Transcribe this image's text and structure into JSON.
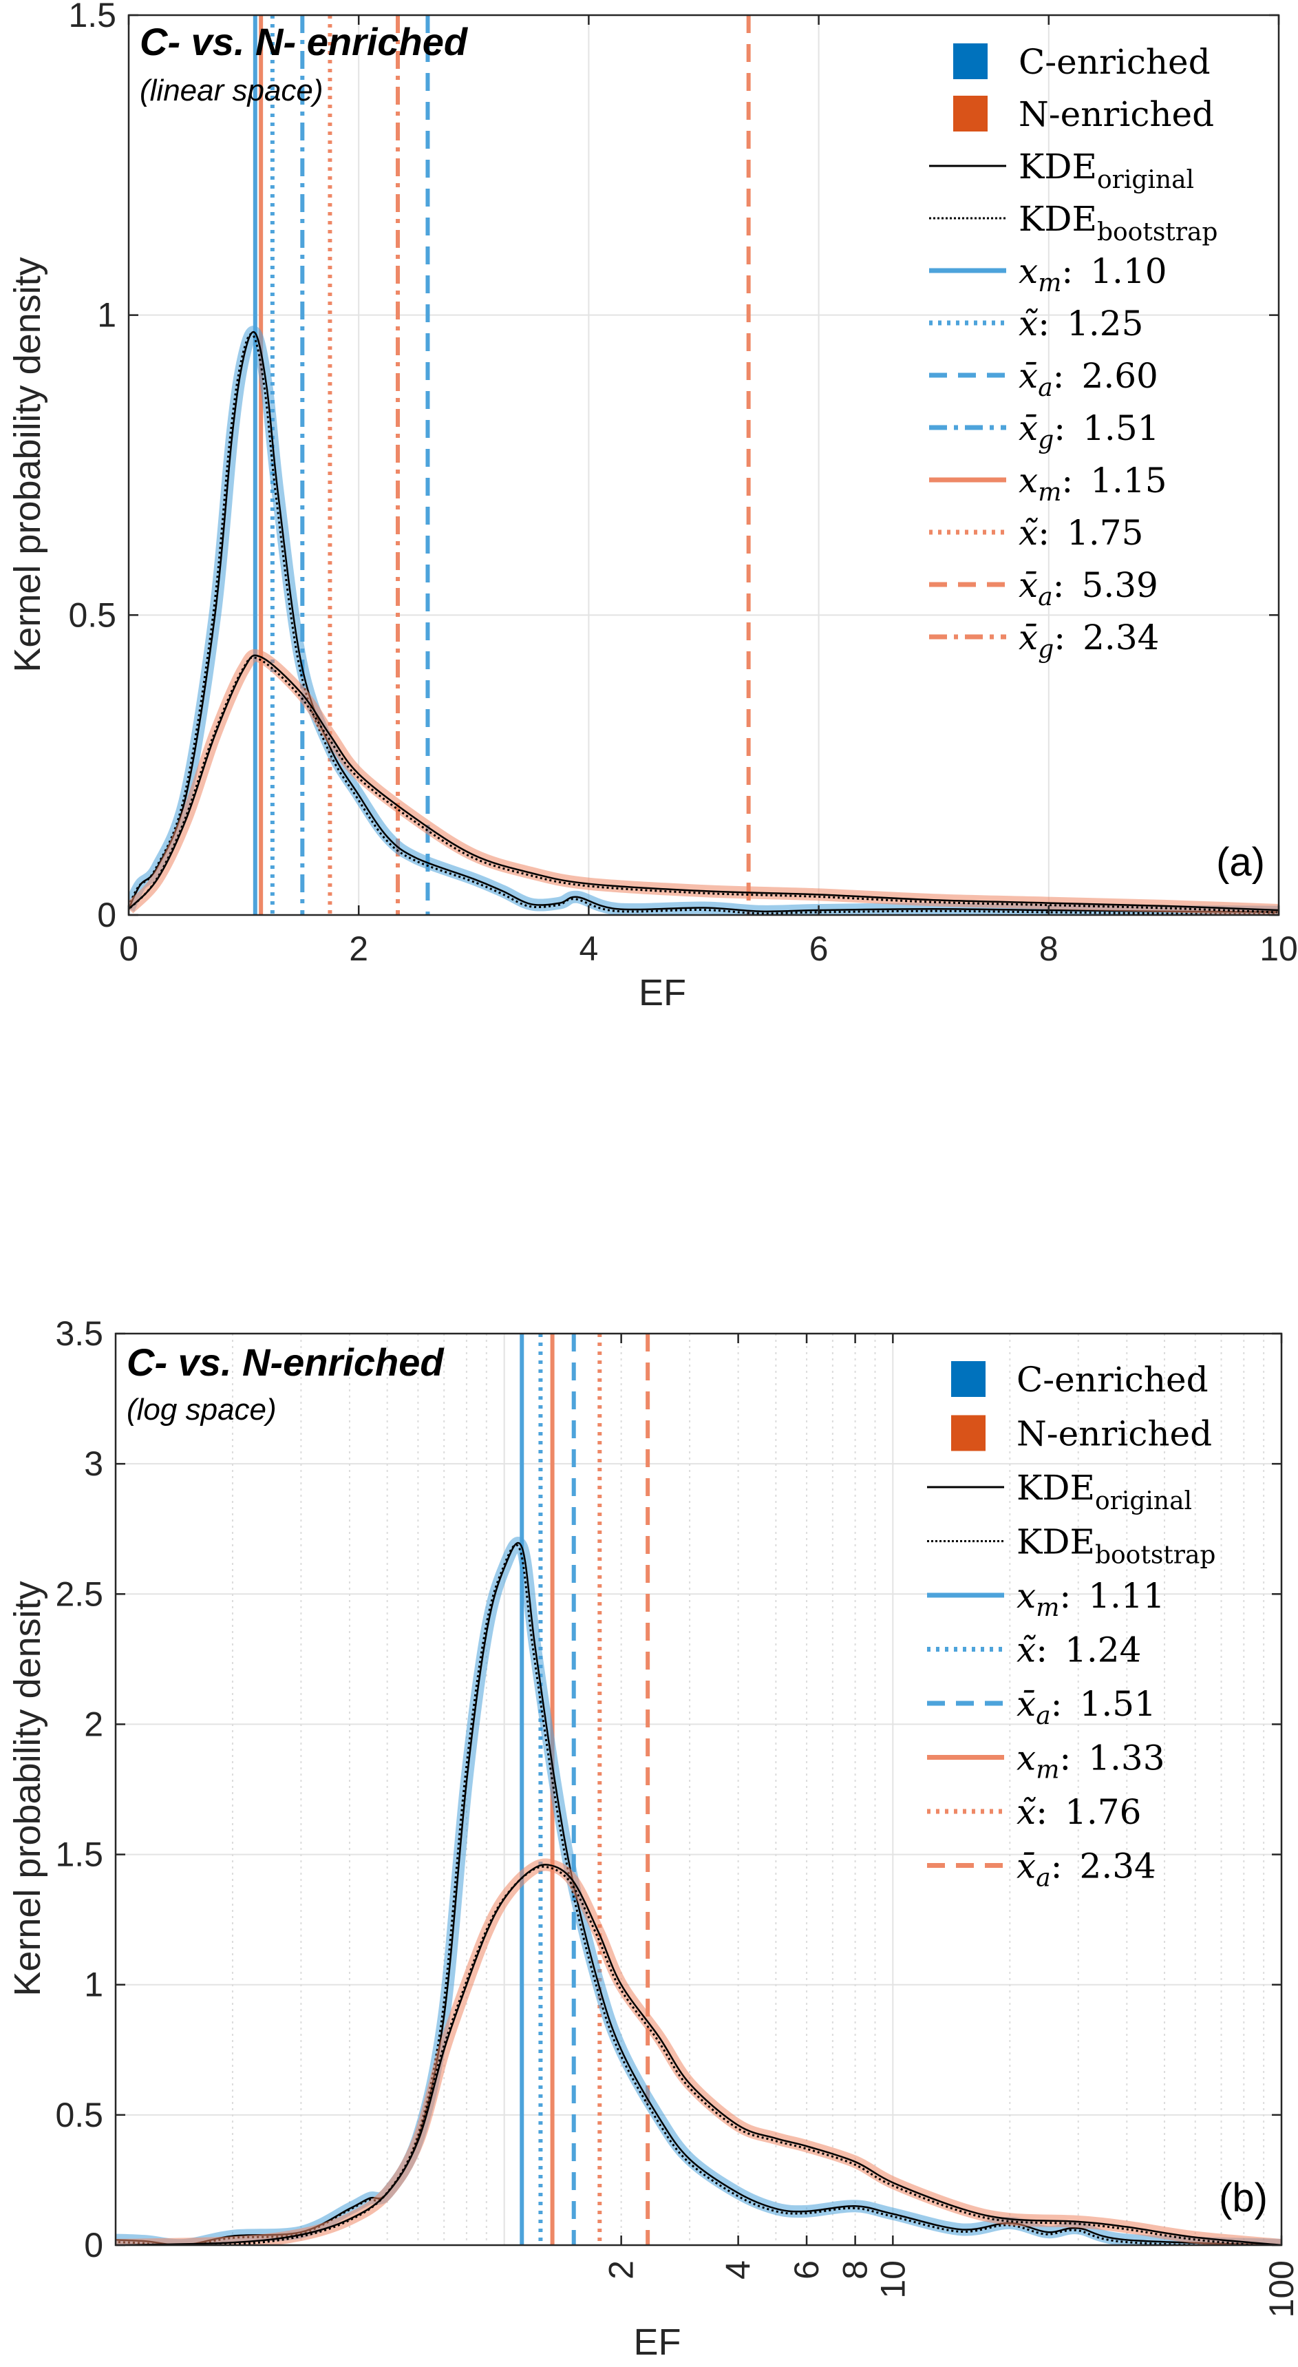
{
  "chart_data": [
    {
      "type": "line",
      "title": "C- vs. N- enriched",
      "subtitle": "(linear space)",
      "panel_label": "(a)",
      "xlabel": "EF",
      "ylabel": "Kernel probability density",
      "xscale": "linear",
      "xlim": [
        0,
        10
      ],
      "ylim": [
        0,
        1.5
      ],
      "xticks": [
        0,
        2,
        4,
        6,
        8,
        10
      ],
      "xtick_labels": [
        "0",
        "2",
        "4",
        "6",
        "8",
        "10"
      ],
      "yticks": [
        0,
        0.5,
        1,
        1.5
      ],
      "ytick_labels": [
        "0",
        "0.5",
        "1",
        "1.5"
      ],
      "grid": true,
      "legend_position": "top-right",
      "series": [
        {
          "name": "C-enriched",
          "color": "#0072BD",
          "band_color": "#4DA3DB",
          "x": [
            0,
            0.1,
            0.25,
            0.5,
            0.75,
            0.9,
            1.0,
            1.1,
            1.2,
            1.3,
            1.5,
            1.75,
            2.0,
            2.25,
            2.5,
            3.0,
            3.25,
            3.5,
            3.75,
            3.9,
            4.25,
            5,
            5.5,
            6,
            7,
            8,
            9,
            10
          ],
          "y": [
            0.01,
            0.05,
            0.08,
            0.2,
            0.5,
            0.8,
            0.93,
            0.97,
            0.88,
            0.7,
            0.42,
            0.28,
            0.2,
            0.13,
            0.095,
            0.06,
            0.04,
            0.018,
            0.02,
            0.03,
            0.01,
            0.012,
            0.006,
            0.008,
            0.01,
            0.008,
            0.006,
            0.005
          ]
        },
        {
          "name": "N-enriched",
          "color": "#D95319",
          "band_color": "#EE8866",
          "x": [
            0,
            0.25,
            0.5,
            0.75,
            1.0,
            1.15,
            1.5,
            1.75,
            2.0,
            2.5,
            3.0,
            3.5,
            4.0,
            5.0,
            6.0,
            7.0,
            8.0,
            9.0,
            10.0
          ],
          "y": [
            0.01,
            0.06,
            0.16,
            0.3,
            0.41,
            0.43,
            0.37,
            0.3,
            0.235,
            0.16,
            0.1,
            0.07,
            0.052,
            0.04,
            0.034,
            0.025,
            0.02,
            0.015,
            0.008
          ]
        }
      ],
      "legend_kde": [
        {
          "symbol": "KDE",
          "sub": "original",
          "style": "solid"
        },
        {
          "symbol": "KDE",
          "sub": "bootstrap",
          "style": "dotted"
        }
      ],
      "vlines": [
        {
          "series": "C-enriched",
          "symbol": "x",
          "accent": "",
          "sub": "m",
          "value": 1.1,
          "value_label": "1.10",
          "style": "solid"
        },
        {
          "series": "C-enriched",
          "symbol": "x̃",
          "accent": "tilde",
          "sub": "",
          "value": 1.25,
          "value_label": "1.25",
          "style": "dotted"
        },
        {
          "series": "C-enriched",
          "symbol": "x̄",
          "accent": "bar",
          "sub": "a",
          "value": 2.6,
          "value_label": "2.60",
          "style": "dashed"
        },
        {
          "series": "C-enriched",
          "symbol": "x̄",
          "accent": "bar",
          "sub": "g",
          "value": 1.51,
          "value_label": "1.51",
          "style": "dashdot"
        },
        {
          "series": "N-enriched",
          "symbol": "x",
          "accent": "",
          "sub": "m",
          "value": 1.15,
          "value_label": "1.15",
          "style": "solid"
        },
        {
          "series": "N-enriched",
          "symbol": "x̃",
          "accent": "tilde",
          "sub": "",
          "value": 1.75,
          "value_label": "1.75",
          "style": "dotted"
        },
        {
          "series": "N-enriched",
          "symbol": "x̄",
          "accent": "bar",
          "sub": "a",
          "value": 5.39,
          "value_label": "5.39",
          "style": "dashed"
        },
        {
          "series": "N-enriched",
          "symbol": "x̄",
          "accent": "bar",
          "sub": "g",
          "value": 2.34,
          "value_label": "2.34",
          "style": "dashdot"
        }
      ]
    },
    {
      "type": "line",
      "title": "C- vs. N-enriched",
      "subtitle": "(log space)",
      "panel_label": "(b)",
      "xlabel": "EF",
      "ylabel": "Kernel probability density",
      "xscale": "log",
      "xlim": [
        0.1,
        100
      ],
      "ylim": [
        0,
        3.5
      ],
      "xticks": [
        2,
        4,
        6,
        8,
        10,
        100
      ],
      "xtick_labels": [
        "2",
        "4",
        "6",
        "8",
        "10",
        "100"
      ],
      "yticks": [
        0,
        0.5,
        1,
        1.5,
        2,
        2.5,
        3,
        3.5
      ],
      "ytick_labels": [
        "0",
        "0.5",
        "1",
        "1.5",
        "2",
        "2.5",
        "3",
        "3.5"
      ],
      "grid": true,
      "legend_position": "top-right",
      "series": [
        {
          "name": "C-enriched",
          "color": "#0072BD",
          "band_color": "#4DA3DB",
          "x": [
            0.1,
            0.12,
            0.15,
            0.2,
            0.3,
            0.4,
            0.45,
            0.5,
            0.6,
            0.7,
            0.8,
            0.9,
            1.0,
            1.11,
            1.2,
            1.35,
            1.5,
            1.75,
            2.0,
            2.5,
            3,
            4,
            5,
            6,
            8,
            10,
            15,
            20,
            25,
            30,
            40,
            100
          ],
          "y": [
            0.02,
            0.015,
            0.0,
            0.035,
            0.05,
            0.14,
            0.18,
            0.2,
            0.41,
            0.88,
            1.78,
            2.35,
            2.6,
            2.68,
            2.3,
            1.78,
            1.4,
            1.0,
            0.75,
            0.49,
            0.33,
            0.2,
            0.14,
            0.13,
            0.15,
            0.12,
            0.06,
            0.085,
            0.05,
            0.065,
            0.02,
            0.0
          ]
        },
        {
          "name": "N-enriched",
          "color": "#D95319",
          "band_color": "#EE8866",
          "x": [
            0.1,
            0.2,
            0.3,
            0.4,
            0.5,
            0.6,
            0.7,
            0.8,
            0.9,
            1.0,
            1.15,
            1.3,
            1.5,
            1.75,
            2.0,
            2.5,
            3,
            4,
            5,
            6,
            8,
            10,
            15,
            20,
            30,
            40,
            60,
            100
          ],
          "y": [
            0.0,
            0.01,
            0.04,
            0.1,
            0.2,
            0.4,
            0.75,
            1.0,
            1.2,
            1.33,
            1.43,
            1.46,
            1.4,
            1.2,
            1.0,
            0.8,
            0.62,
            0.46,
            0.41,
            0.38,
            0.32,
            0.24,
            0.14,
            0.1,
            0.09,
            0.07,
            0.03,
            0.0
          ]
        }
      ],
      "legend_kde": [
        {
          "symbol": "KDE",
          "sub": "original",
          "style": "solid"
        },
        {
          "symbol": "KDE",
          "sub": "bootstrap",
          "style": "dotted"
        }
      ],
      "vlines": [
        {
          "series": "C-enriched",
          "symbol": "x",
          "accent": "",
          "sub": "m",
          "value": 1.11,
          "value_label": "1.11",
          "style": "solid"
        },
        {
          "series": "C-enriched",
          "symbol": "x̃",
          "accent": "tilde",
          "sub": "",
          "value": 1.24,
          "value_label": "1.24",
          "style": "dotted"
        },
        {
          "series": "C-enriched",
          "symbol": "x̄",
          "accent": "bar",
          "sub": "a",
          "value": 1.51,
          "value_label": "1.51",
          "style": "dashed"
        },
        {
          "series": "N-enriched",
          "symbol": "x",
          "accent": "",
          "sub": "m",
          "value": 1.33,
          "value_label": "1.33",
          "style": "solid"
        },
        {
          "series": "N-enriched",
          "symbol": "x̃",
          "accent": "tilde",
          "sub": "",
          "value": 1.76,
          "value_label": "1.76",
          "style": "dotted"
        },
        {
          "series": "N-enriched",
          "symbol": "x̄",
          "accent": "bar",
          "sub": "a",
          "value": 2.34,
          "value_label": "2.34",
          "style": "dashed"
        }
      ]
    }
  ]
}
